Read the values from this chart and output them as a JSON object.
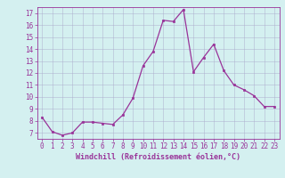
{
  "x": [
    0,
    1,
    2,
    3,
    4,
    5,
    6,
    7,
    8,
    9,
    10,
    11,
    12,
    13,
    14,
    15,
    16,
    17,
    18,
    19,
    20,
    21,
    22,
    23
  ],
  "y": [
    8.3,
    7.1,
    6.8,
    7.0,
    7.9,
    7.9,
    7.8,
    7.7,
    8.5,
    9.9,
    12.6,
    13.8,
    16.4,
    16.3,
    17.3,
    12.1,
    13.3,
    14.4,
    12.2,
    11.0,
    10.6,
    10.1,
    9.2,
    9.2
  ],
  "xlim": [
    -0.5,
    23.5
  ],
  "ylim": [
    6.5,
    17.5
  ],
  "yticks": [
    7,
    8,
    9,
    10,
    11,
    12,
    13,
    14,
    15,
    16,
    17
  ],
  "xticks": [
    0,
    1,
    2,
    3,
    4,
    5,
    6,
    7,
    8,
    9,
    10,
    11,
    12,
    13,
    14,
    15,
    16,
    17,
    18,
    19,
    20,
    21,
    22,
    23
  ],
  "line_color": "#993399",
  "marker": "s",
  "marker_size": 1.8,
  "linewidth": 0.9,
  "xlabel": "Windchill (Refroidissement éolien,°C)",
  "background_color": "#d4f0f0",
  "grid_color": "#aaaacc",
  "tick_fontsize": 5.5,
  "xlabel_fontsize": 6.0
}
